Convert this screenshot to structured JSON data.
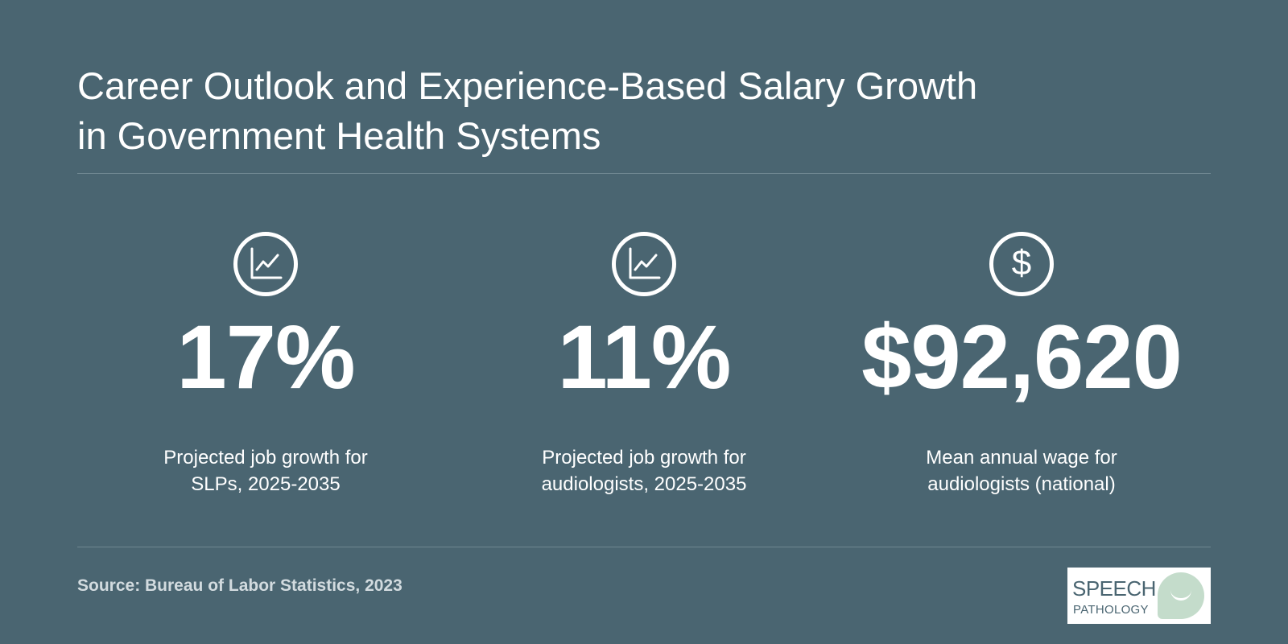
{
  "title": {
    "line1": "Career Outlook and Experience-Based Salary Growth",
    "line2": "in Government Health Systems"
  },
  "stats": [
    {
      "icon": "line-chart-icon",
      "value": "17%",
      "caption": "Projected job growth for SLPs, 2025-2035"
    },
    {
      "icon": "line-chart-icon",
      "value": "11%",
      "caption": "Projected job growth for audiologists, 2025-2035"
    },
    {
      "icon": "dollar-icon",
      "icon_glyph": "$",
      "value": "$92,620",
      "caption": "Mean annual wage for audiologists (national)"
    }
  ],
  "source": "Source: Bureau of Labor Statistics, 2023",
  "logo": {
    "line1": "SPEECH",
    "line2": "PATHOLOGY"
  },
  "colors": {
    "background": "#4a6571",
    "text": "#ffffff",
    "logo_accent": "#c4dccb"
  }
}
